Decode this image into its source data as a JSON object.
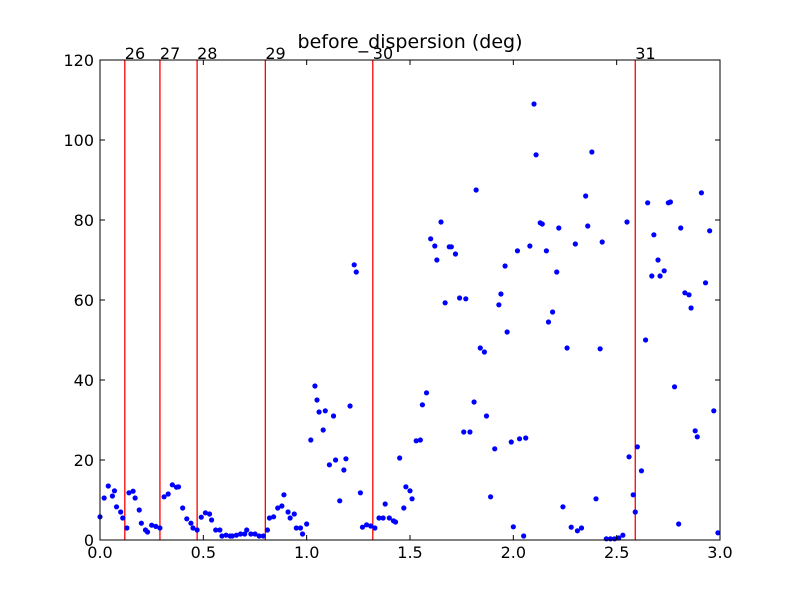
{
  "chart_data": {
    "type": "scatter",
    "title": "before_dispersion (deg)",
    "xlabel": "",
    "ylabel": "",
    "xlim": [
      0.0,
      3.0
    ],
    "ylim": [
      0,
      120
    ],
    "x_ticks": [
      "0.0",
      "0.5",
      "1.0",
      "1.5",
      "2.0",
      "2.5",
      "3.0"
    ],
    "y_ticks": [
      "0",
      "20",
      "40",
      "60",
      "80",
      "100",
      "120"
    ],
    "grid": false,
    "marker_color": "#0000ff",
    "vline_color": "#ff0000",
    "vertical_lines": [
      {
        "x": 0.12,
        "label": "26"
      },
      {
        "x": 0.29,
        "label": "27"
      },
      {
        "x": 0.47,
        "label": "28"
      },
      {
        "x": 0.8,
        "label": "29"
      },
      {
        "x": 1.32,
        "label": "30"
      },
      {
        "x": 2.59,
        "label": "31"
      }
    ],
    "points": [
      [
        0.0,
        5.8
      ],
      [
        0.02,
        10.5
      ],
      [
        0.04,
        13.5
      ],
      [
        0.06,
        11.0
      ],
      [
        0.07,
        12.3
      ],
      [
        0.08,
        8.3
      ],
      [
        0.1,
        7.0
      ],
      [
        0.11,
        5.5
      ],
      [
        0.13,
        3.0
      ],
      [
        0.14,
        11.8
      ],
      [
        0.16,
        12.2
      ],
      [
        0.17,
        10.5
      ],
      [
        0.19,
        7.5
      ],
      [
        0.2,
        4.2
      ],
      [
        0.22,
        2.5
      ],
      [
        0.23,
        2.0
      ],
      [
        0.25,
        3.7
      ],
      [
        0.27,
        3.4
      ],
      [
        0.29,
        3.0
      ],
      [
        0.31,
        10.8
      ],
      [
        0.33,
        11.5
      ],
      [
        0.35,
        13.8
      ],
      [
        0.37,
        13.2
      ],
      [
        0.38,
        13.3
      ],
      [
        0.4,
        8.0
      ],
      [
        0.42,
        5.3
      ],
      [
        0.44,
        4.2
      ],
      [
        0.45,
        3.0
      ],
      [
        0.47,
        2.5
      ],
      [
        0.49,
        5.7
      ],
      [
        0.51,
        6.8
      ],
      [
        0.53,
        6.5
      ],
      [
        0.54,
        5.0
      ],
      [
        0.56,
        2.5
      ],
      [
        0.58,
        2.5
      ],
      [
        0.59,
        1.0
      ],
      [
        0.61,
        1.2
      ],
      [
        0.63,
        1.0
      ],
      [
        0.64,
        1.0
      ],
      [
        0.66,
        1.2
      ],
      [
        0.68,
        1.5
      ],
      [
        0.7,
        1.5
      ],
      [
        0.71,
        2.5
      ],
      [
        0.73,
        1.5
      ],
      [
        0.75,
        1.5
      ],
      [
        0.77,
        1.0
      ],
      [
        0.79,
        1.0
      ],
      [
        0.81,
        2.5
      ],
      [
        0.82,
        5.5
      ],
      [
        0.84,
        5.8
      ],
      [
        0.86,
        8.0
      ],
      [
        0.88,
        8.5
      ],
      [
        0.89,
        11.3
      ],
      [
        0.91,
        7.0
      ],
      [
        0.92,
        5.5
      ],
      [
        0.94,
        6.5
      ],
      [
        0.95,
        3.0
      ],
      [
        0.97,
        3.0
      ],
      [
        0.98,
        1.5
      ],
      [
        1.0,
        4.0
      ],
      [
        1.02,
        25.0
      ],
      [
        1.04,
        38.5
      ],
      [
        1.05,
        35.0
      ],
      [
        1.06,
        32.0
      ],
      [
        1.08,
        27.5
      ],
      [
        1.09,
        32.3
      ],
      [
        1.11,
        18.8
      ],
      [
        1.13,
        31.0
      ],
      [
        1.14,
        20.0
      ],
      [
        1.16,
        9.8
      ],
      [
        1.18,
        17.5
      ],
      [
        1.19,
        20.3
      ],
      [
        1.21,
        33.5
      ],
      [
        1.23,
        68.8
      ],
      [
        1.24,
        67.0
      ],
      [
        1.26,
        11.8
      ],
      [
        1.27,
        3.2
      ],
      [
        1.29,
        3.8
      ],
      [
        1.31,
        3.5
      ],
      [
        1.33,
        3.0
      ],
      [
        1.35,
        5.5
      ],
      [
        1.37,
        5.5
      ],
      [
        1.38,
        9.0
      ],
      [
        1.4,
        5.5
      ],
      [
        1.42,
        4.8
      ],
      [
        1.43,
        4.5
      ],
      [
        1.45,
        20.5
      ],
      [
        1.47,
        8.0
      ],
      [
        1.48,
        13.3
      ],
      [
        1.5,
        12.3
      ],
      [
        1.51,
        10.3
      ],
      [
        1.53,
        24.8
      ],
      [
        1.55,
        25.0
      ],
      [
        1.56,
        33.8
      ],
      [
        1.58,
        36.8
      ],
      [
        1.6,
        75.3
      ],
      [
        1.62,
        73.5
      ],
      [
        1.63,
        70.0
      ],
      [
        1.65,
        79.5
      ],
      [
        1.67,
        59.3
      ],
      [
        1.69,
        73.3
      ],
      [
        1.7,
        73.3
      ],
      [
        1.72,
        71.5
      ],
      [
        1.74,
        60.5
      ],
      [
        1.76,
        27.0
      ],
      [
        1.77,
        60.3
      ],
      [
        1.79,
        27.0
      ],
      [
        1.81,
        34.5
      ],
      [
        1.82,
        87.5
      ],
      [
        1.84,
        48.0
      ],
      [
        1.86,
        47.0
      ],
      [
        1.87,
        31.0
      ],
      [
        1.89,
        10.8
      ],
      [
        1.91,
        22.8
      ],
      [
        1.93,
        58.8
      ],
      [
        1.94,
        61.5
      ],
      [
        1.96,
        68.5
      ],
      [
        1.97,
        52.0
      ],
      [
        1.99,
        24.5
      ],
      [
        2.0,
        3.3
      ],
      [
        2.02,
        72.3
      ],
      [
        2.03,
        25.3
      ],
      [
        2.05,
        1.0
      ],
      [
        2.06,
        25.5
      ],
      [
        2.08,
        73.5
      ],
      [
        2.1,
        109.0
      ],
      [
        2.11,
        96.3
      ],
      [
        2.13,
        79.3
      ],
      [
        2.14,
        79.0
      ],
      [
        2.16,
        72.3
      ],
      [
        2.17,
        54.5
      ],
      [
        2.19,
        57.0
      ],
      [
        2.21,
        67.0
      ],
      [
        2.22,
        78.0
      ],
      [
        2.24,
        8.3
      ],
      [
        2.26,
        48.0
      ],
      [
        2.28,
        3.2
      ],
      [
        2.3,
        74.0
      ],
      [
        2.31,
        2.3
      ],
      [
        2.33,
        3.0
      ],
      [
        2.35,
        86.0
      ],
      [
        2.36,
        78.5
      ],
      [
        2.38,
        97.0
      ],
      [
        2.4,
        10.3
      ],
      [
        2.42,
        47.8
      ],
      [
        2.43,
        74.5
      ],
      [
        2.45,
        0.3
      ],
      [
        2.47,
        0.3
      ],
      [
        2.49,
        0.3
      ],
      [
        2.51,
        0.5
      ],
      [
        2.53,
        1.2
      ],
      [
        2.55,
        79.5
      ],
      [
        2.56,
        20.8
      ],
      [
        2.58,
        11.3
      ],
      [
        2.59,
        7.0
      ],
      [
        2.6,
        23.3
      ],
      [
        2.62,
        17.3
      ],
      [
        2.64,
        50.0
      ],
      [
        2.65,
        84.3
      ],
      [
        2.67,
        66.0
      ],
      [
        2.68,
        76.3
      ],
      [
        2.7,
        70.0
      ],
      [
        2.71,
        66.0
      ],
      [
        2.73,
        67.3
      ],
      [
        2.75,
        84.3
      ],
      [
        2.76,
        84.5
      ],
      [
        2.78,
        38.3
      ],
      [
        2.8,
        4.0
      ],
      [
        2.81,
        78.0
      ],
      [
        2.83,
        61.8
      ],
      [
        2.85,
        61.3
      ],
      [
        2.86,
        58.0
      ],
      [
        2.88,
        27.3
      ],
      [
        2.89,
        25.8
      ],
      [
        2.91,
        86.8
      ],
      [
        2.93,
        64.3
      ],
      [
        2.95,
        77.3
      ],
      [
        2.97,
        32.3
      ],
      [
        2.99,
        1.8
      ]
    ]
  }
}
